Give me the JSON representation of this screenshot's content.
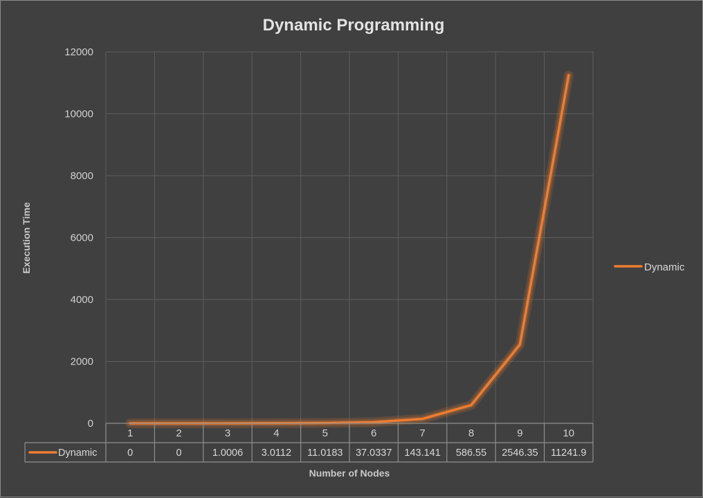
{
  "chart_data": {
    "type": "line",
    "title": "Dynamic Programming",
    "xlabel": "Number of Nodes",
    "ylabel": "Execution Time",
    "categories": [
      "1",
      "2",
      "3",
      "4",
      "5",
      "6",
      "7",
      "8",
      "9",
      "10"
    ],
    "series": [
      {
        "name": "Dynamic",
        "color": "#ed7d31",
        "values": [
          0,
          0,
          1.0006,
          3.0112,
          11.0183,
          37.0337,
          143.141,
          586.55,
          2546.35,
          11241.9
        ],
        "value_labels": [
          "0",
          "0",
          "1.0006",
          "3.0112",
          "11.0183",
          "37.0337",
          "143.141",
          "586.55",
          "2546.35",
          "11241.9"
        ]
      }
    ],
    "ylim": [
      0,
      12000
    ],
    "yticks": [
      0,
      2000,
      4000,
      6000,
      8000,
      10000,
      12000
    ],
    "grid": true,
    "legend": "right",
    "data_table": true
  }
}
